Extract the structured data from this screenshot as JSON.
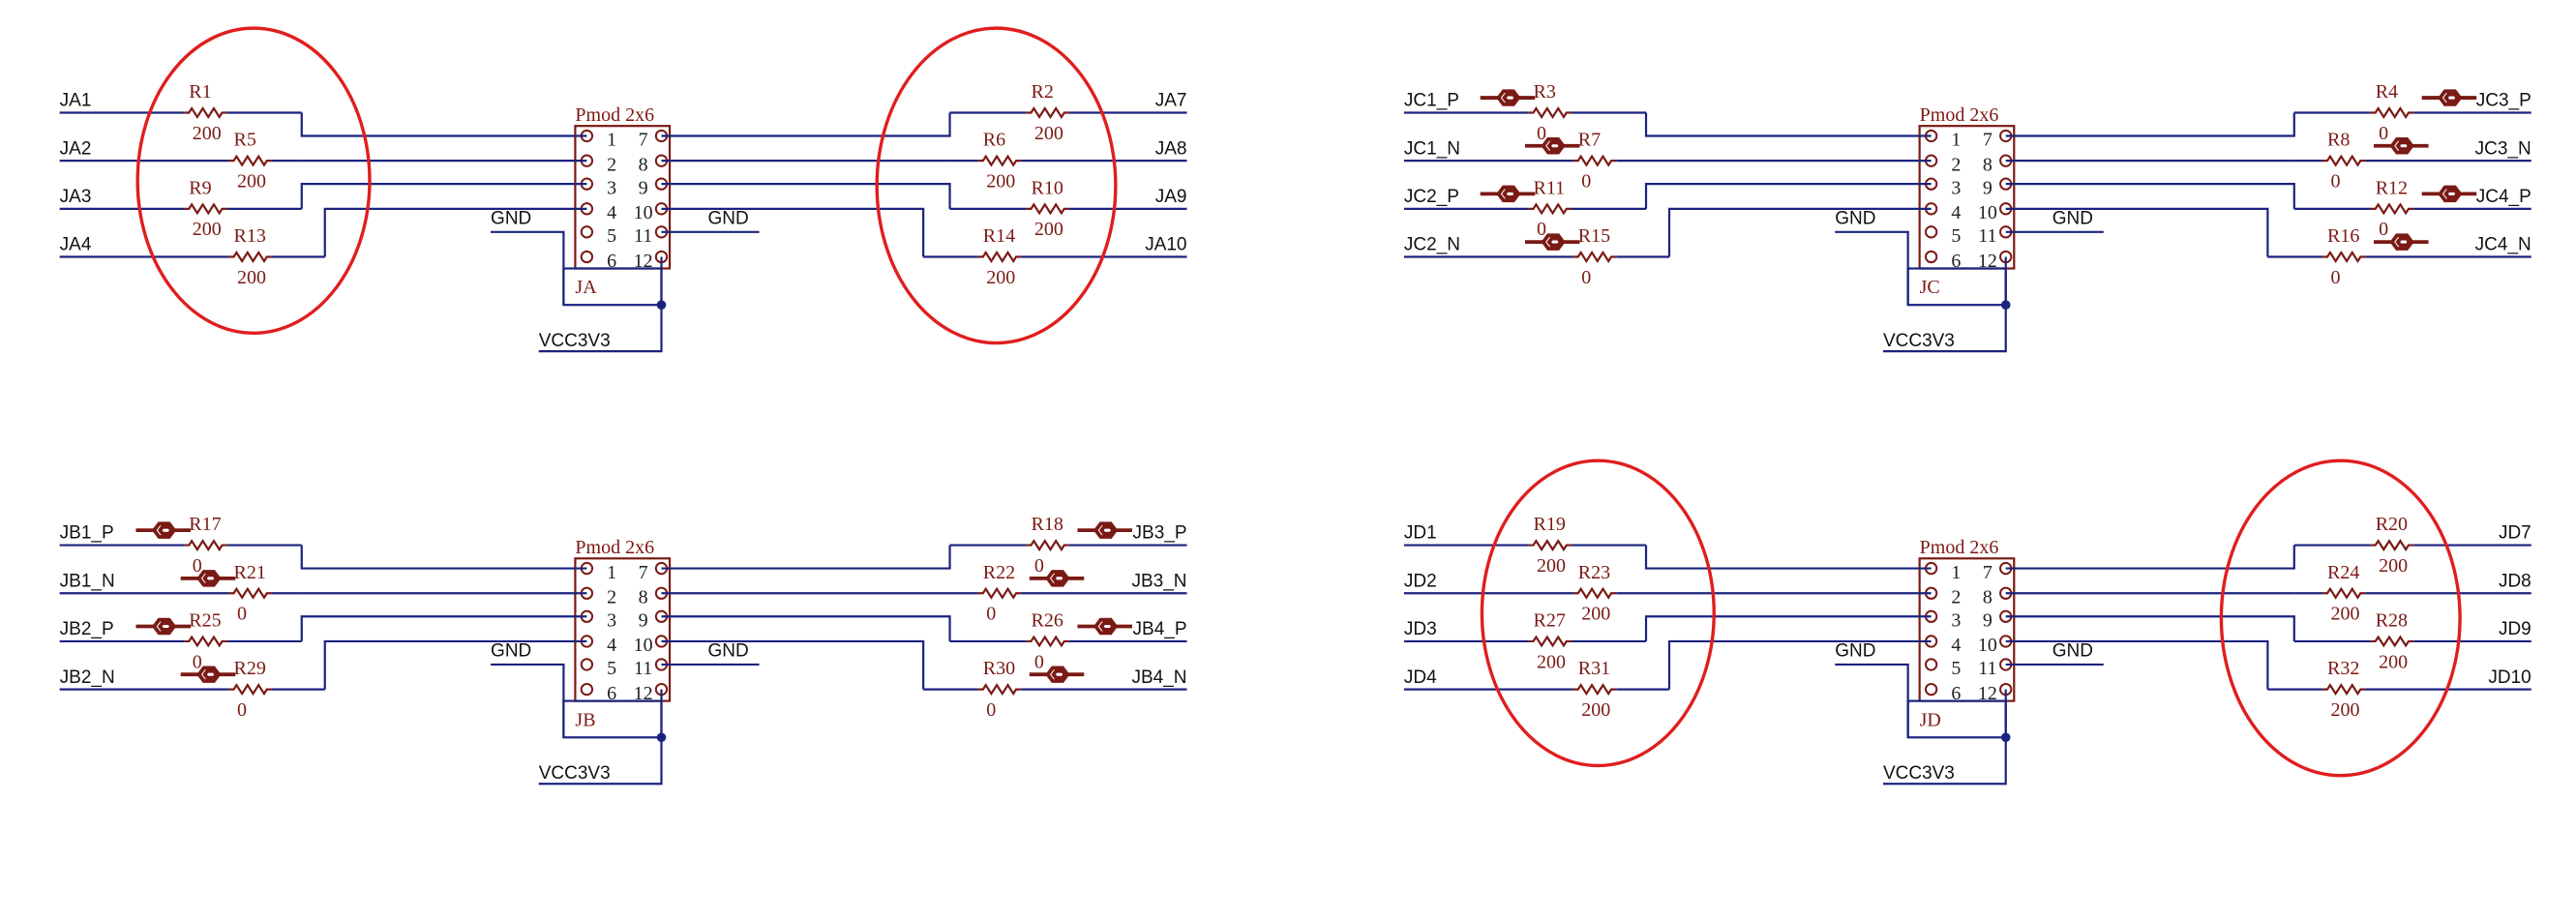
{
  "diagram": {
    "colors": {
      "wire": "#1a237e",
      "component": "#7a1a14",
      "highlight": "#e01e1e",
      "text": "#111111"
    },
    "blocks": [
      {
        "header": "Pmod 2x6",
        "ref": "JA",
        "gnd_left": "GND",
        "gnd_right": "GND",
        "vcc": "VCC3V3",
        "pin_rows": [
          [
            "1",
            "7"
          ],
          [
            "2",
            "8"
          ],
          [
            "3",
            "9"
          ],
          [
            "4",
            "10"
          ],
          [
            "5",
            "11"
          ],
          [
            "6",
            "12"
          ]
        ],
        "has_port_icons": false,
        "circled": true,
        "left": [
          {
            "net": "JA1",
            "ref": "R1",
            "value": "200"
          },
          {
            "net": "JA2",
            "ref": "R5",
            "value": "200"
          },
          {
            "net": "JA3",
            "ref": "R9",
            "value": "200"
          },
          {
            "net": "JA4",
            "ref": "R13",
            "value": "200"
          }
        ],
        "right": [
          {
            "net": "JA7",
            "ref": "R2",
            "value": "200"
          },
          {
            "net": "JA8",
            "ref": "R6",
            "value": "200"
          },
          {
            "net": "JA9",
            "ref": "R10",
            "value": "200"
          },
          {
            "net": "JA10",
            "ref": "R14",
            "value": "200"
          }
        ]
      },
      {
        "header": "Pmod 2x6",
        "ref": "JC",
        "gnd_left": "GND",
        "gnd_right": "GND",
        "vcc": "VCC3V3",
        "pin_rows": [
          [
            "1",
            "7"
          ],
          [
            "2",
            "8"
          ],
          [
            "3",
            "9"
          ],
          [
            "4",
            "10"
          ],
          [
            "5",
            "11"
          ],
          [
            "6",
            "12"
          ]
        ],
        "has_port_icons": true,
        "circled": false,
        "left": [
          {
            "net": "JC1_P",
            "ref": "R3",
            "value": "0"
          },
          {
            "net": "JC1_N",
            "ref": "R7",
            "value": "0"
          },
          {
            "net": "JC2_P",
            "ref": "R11",
            "value": "0"
          },
          {
            "net": "JC2_N",
            "ref": "R15",
            "value": "0"
          }
        ],
        "right": [
          {
            "net": "JC3_P",
            "ref": "R4",
            "value": "0"
          },
          {
            "net": "JC3_N",
            "ref": "R8",
            "value": "0"
          },
          {
            "net": "JC4_P",
            "ref": "R12",
            "value": "0"
          },
          {
            "net": "JC4_N",
            "ref": "R16",
            "value": "0"
          }
        ]
      },
      {
        "header": "Pmod 2x6",
        "ref": "JB",
        "gnd_left": "GND",
        "gnd_right": "GND",
        "vcc": "VCC3V3",
        "pin_rows": [
          [
            "1",
            "7"
          ],
          [
            "2",
            "8"
          ],
          [
            "3",
            "9"
          ],
          [
            "4",
            "10"
          ],
          [
            "5",
            "11"
          ],
          [
            "6",
            "12"
          ]
        ],
        "has_port_icons": true,
        "circled": false,
        "left": [
          {
            "net": "JB1_P",
            "ref": "R17",
            "value": "0"
          },
          {
            "net": "JB1_N",
            "ref": "R21",
            "value": "0"
          },
          {
            "net": "JB2_P",
            "ref": "R25",
            "value": "0"
          },
          {
            "net": "JB2_N",
            "ref": "R29",
            "value": "0"
          }
        ],
        "right": [
          {
            "net": "JB3_P",
            "ref": "R18",
            "value": "0"
          },
          {
            "net": "JB3_N",
            "ref": "R22",
            "value": "0"
          },
          {
            "net": "JB4_P",
            "ref": "R26",
            "value": "0"
          },
          {
            "net": "JB4_N",
            "ref": "R30",
            "value": "0"
          }
        ]
      },
      {
        "header": "Pmod 2x6",
        "ref": "JD",
        "gnd_left": "GND",
        "gnd_right": "GND",
        "vcc": "VCC3V3",
        "pin_rows": [
          [
            "1",
            "7"
          ],
          [
            "2",
            "8"
          ],
          [
            "3",
            "9"
          ],
          [
            "4",
            "10"
          ],
          [
            "5",
            "11"
          ],
          [
            "6",
            "12"
          ]
        ],
        "has_port_icons": false,
        "circled": true,
        "left": [
          {
            "net": "JD1",
            "ref": "R19",
            "value": "200"
          },
          {
            "net": "JD2",
            "ref": "R23",
            "value": "200"
          },
          {
            "net": "JD3",
            "ref": "R27",
            "value": "200"
          },
          {
            "net": "JD4",
            "ref": "R31",
            "value": "200"
          }
        ],
        "right": [
          {
            "net": "JD7",
            "ref": "R20",
            "value": "200"
          },
          {
            "net": "JD8",
            "ref": "R24",
            "value": "200"
          },
          {
            "net": "JD9",
            "ref": "R28",
            "value": "200"
          },
          {
            "net": "JD10",
            "ref": "R32",
            "value": "200"
          }
        ]
      }
    ]
  }
}
